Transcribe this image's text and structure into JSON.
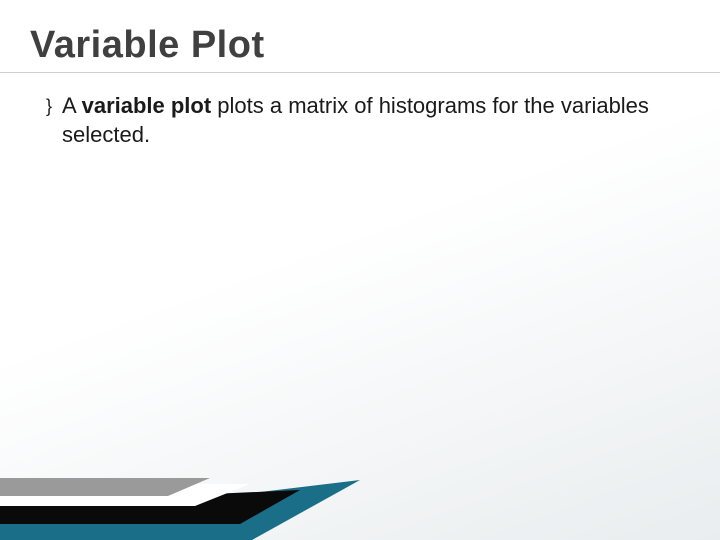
{
  "slide": {
    "title": "Variable Plot",
    "bullet": {
      "marker": "}",
      "prefix": "A ",
      "bold": "variable plot",
      "rest": " plots a matrix of histograms for the variables selected."
    }
  },
  "styling": {
    "title_fontsize": 38,
    "title_color": "#404040",
    "body_fontsize": 22,
    "body_color": "#1a1a1a",
    "background_gradient_start": "#ffffff",
    "background_gradient_end": "#e9edef",
    "underline_color": "#d0d0d0",
    "wedge_colors": {
      "teal": "#1b6e87",
      "black": "#0a0a0a",
      "white": "#ffffff",
      "gray": "#9a9a9a"
    }
  }
}
